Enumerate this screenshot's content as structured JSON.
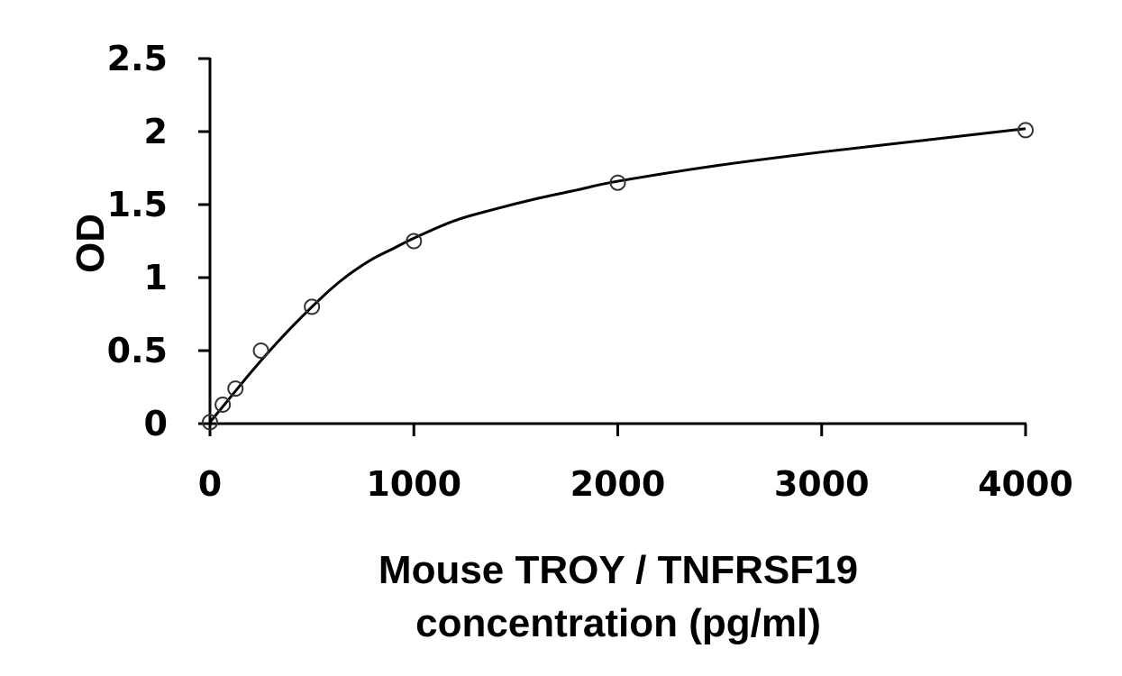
{
  "chart_data": {
    "type": "scatter",
    "title": "",
    "xlabel_lines": [
      "Mouse TROY / TNFRSF19",
      "concentration (pg/ml)"
    ],
    "ylabel": "OD",
    "xlim": [
      0,
      4000
    ],
    "ylim": [
      0,
      2.5
    ],
    "x_ticks": [
      0,
      1000,
      2000,
      3000,
      4000
    ],
    "x_tick_labels": [
      "0",
      "1000",
      "2000",
      "3000",
      "4000"
    ],
    "y_ticks": [
      0,
      0.5,
      1,
      1.5,
      2,
      2.5
    ],
    "y_tick_labels": [
      "0",
      "0.5",
      "1",
      "1.5",
      "2",
      "2.5"
    ],
    "grid": false,
    "legend": "none",
    "series": [
      {
        "marker": "open-circle",
        "x": [
          0,
          62.5,
          125,
          250,
          500,
          1000,
          2000,
          4000
        ],
        "y": [
          0.01,
          0.13,
          0.24,
          0.5,
          0.8,
          1.25,
          1.65,
          2.01
        ]
      }
    ],
    "fit_curve": {
      "style": "smooth-line",
      "x": [
        0,
        100,
        200,
        300,
        400,
        500,
        600,
        700,
        800,
        900,
        1000,
        1200,
        1400,
        1600,
        1800,
        2000,
        2500,
        3000,
        3500,
        4000
      ],
      "y": [
        0.01,
        0.18,
        0.35,
        0.51,
        0.66,
        0.8,
        0.93,
        1.04,
        1.13,
        1.2,
        1.27,
        1.39,
        1.47,
        1.54,
        1.6,
        1.66,
        1.77,
        1.86,
        1.94,
        2.02
      ]
    },
    "colors": {
      "axis": "#000000",
      "marker_stroke": "#333333",
      "curve": "#000000",
      "background": "#ffffff"
    }
  }
}
